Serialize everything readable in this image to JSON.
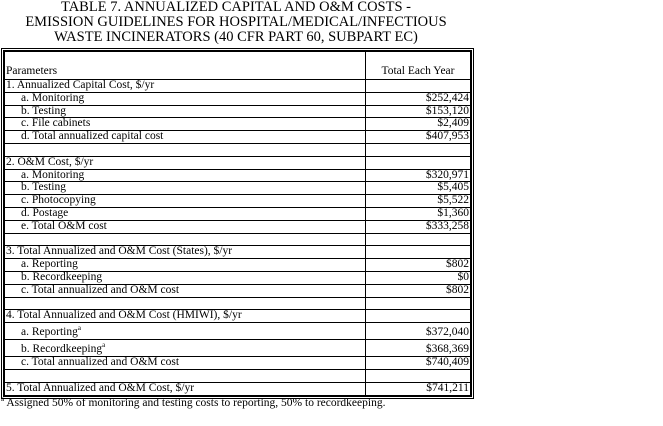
{
  "title": {
    "line1": "TABLE 7.  ANNUALIZED CAPITAL AND O&M COSTS -",
    "line2": "EMISSION GUIDELINES FOR HOSPITAL/MEDICAL/INFECTIOUS",
    "line3": "WASTE INCINERATORS (40 CFR PART 60, SUBPART EC)"
  },
  "table": {
    "headers": [
      "Parameters",
      "Total Each Year"
    ],
    "rows": [
      {
        "label": "1. Annualized Capital Cost, $/yr",
        "value": ""
      },
      {
        "label": "a. Monitoring",
        "value": "$252,424"
      },
      {
        "label": "b. Testing",
        "value": "$153,120"
      },
      {
        "label": "c. File cabinets",
        "value": "$2,409"
      },
      {
        "label": "d. Total annualized capital cost",
        "value": "$407,953"
      },
      {
        "label": "",
        "value": ""
      },
      {
        "label": "2. O&M Cost, $/yr",
        "value": ""
      },
      {
        "label": "a. Monitoring",
        "value": "$320,971"
      },
      {
        "label": "b. Testing",
        "value": "$5,405"
      },
      {
        "label": "c. Photocopying",
        "value": "$5,522"
      },
      {
        "label": "d. Postage",
        "value": "$1,360"
      },
      {
        "label": "e. Total O&M cost",
        "value": "$333,258"
      },
      {
        "label": "",
        "value": ""
      },
      {
        "label": "3. Total Annualized and O&M Cost (States), $/yr",
        "value": ""
      },
      {
        "label": "a. Reporting",
        "value": "$802"
      },
      {
        "label": "b. Recordkeeping",
        "value": "$0"
      },
      {
        "label": "c. Total annualized and O&M cost",
        "value": "$802"
      },
      {
        "label": "",
        "value": ""
      },
      {
        "label": "4. Total Annualized and O&M Cost (HMIWI), $/yr",
        "value": ""
      },
      {
        "label": "a. Reporting",
        "note": "a",
        "value": "$372,040"
      },
      {
        "label": "b. Recordkeeping",
        "note": "a",
        "value": "$368,369"
      },
      {
        "label": "c. Total annualized and O&M cost",
        "value": "$740,409"
      },
      {
        "label": "",
        "value": ""
      },
      {
        "label": "5. Total Annualized and O&M Cost, $/yr",
        "value": "$741,211"
      }
    ]
  },
  "footnote": {
    "marker": "a",
    "text": " Assigned 50% of monitoring and testing costs to reporting, 50% to recordkeeping."
  }
}
